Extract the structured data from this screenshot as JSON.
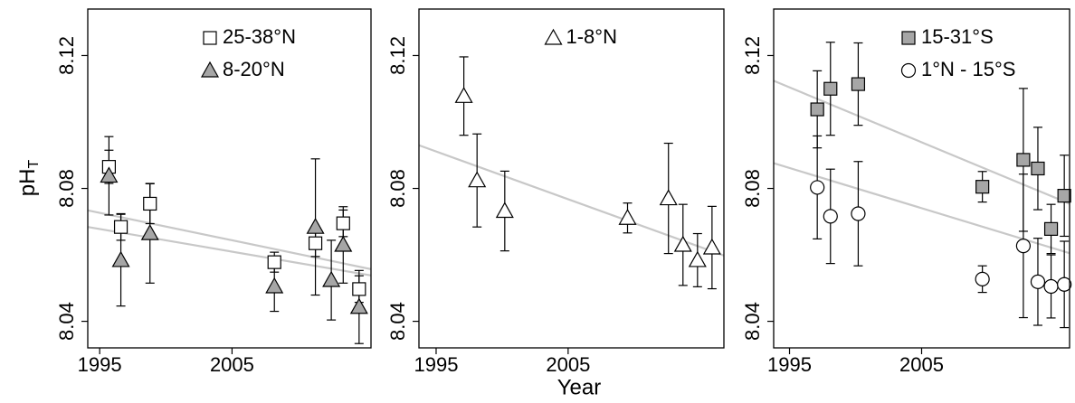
{
  "chart_data": [
    {
      "type": "scatter",
      "ylabel": "pH",
      "ylabel_subscript": "T",
      "xlim": [
        1994.1,
        2015.5
      ],
      "ylim": [
        8.032,
        8.134
      ],
      "xticks": [
        1995,
        2005
      ],
      "yticks": [
        8.04,
        8.08,
        8.12
      ],
      "legend": "top right",
      "series": [
        {
          "name": "25-38°N",
          "marker": "square",
          "color": "#ffffff",
          "x": [
            1995.7,
            1996.6,
            1998.8,
            2008.2,
            2011.3,
            2013.4,
            2014.6
          ],
          "values": [
            8.0865,
            8.0684,
            8.0754,
            8.0578,
            8.0635,
            8.0695,
            8.0497
          ],
          "errors": [
            0.005,
            0.004,
            0.006,
            0.003,
            0.004,
            0.004,
            0.004
          ]
        },
        {
          "name": "8-20°N",
          "marker": "triangle",
          "color": "#a6a6a6",
          "x": [
            1995.7,
            1996.6,
            1998.8,
            2008.2,
            2011.3,
            2012.5,
            2013.4,
            2014.6
          ],
          "values": [
            8.0838,
            8.0584,
            8.0665,
            8.0505,
            8.0684,
            8.0524,
            8.063,
            8.0443
          ],
          "errors": [
            0.0118,
            0.0138,
            0.015,
            0.0075,
            0.0205,
            0.012,
            0.0115,
            0.011
          ]
        }
      ],
      "trendlines": [
        {
          "color": "#c8c8c8",
          "x": [
            1994.1,
            2015.5
          ],
          "values": [
            8.0734,
            8.0557
          ]
        },
        {
          "color": "#c8c8c8",
          "x": [
            1994.1,
            2015.5
          ],
          "values": [
            8.0684,
            8.0538
          ]
        }
      ]
    },
    {
      "type": "scatter",
      "xlabel": "Year",
      "xlim": [
        1993.7,
        2016.8
      ],
      "ylim": [
        8.032,
        8.134
      ],
      "xticks": [
        1995,
        2005
      ],
      "yticks": [
        8.04,
        8.08,
        8.12
      ],
      "legend": "top",
      "series": [
        {
          "name": "1-8°N",
          "marker": "triangle",
          "color": "#ffffff",
          "x": [
            1997.1,
            1998.1,
            2000.2,
            2009.5,
            2012.6,
            2013.7,
            2014.8,
            2015.9
          ],
          "values": [
            8.1078,
            8.0824,
            8.0732,
            8.0711,
            8.077,
            8.063,
            8.0584,
            8.0622
          ],
          "errors": [
            0.0118,
            0.014,
            0.012,
            0.0045,
            0.0166,
            0.0122,
            0.008,
            0.0124
          ]
        }
      ],
      "trendlines": [
        {
          "color": "#c8c8c8",
          "x": [
            1993.7,
            2016.8
          ],
          "values": [
            8.093,
            8.0598
          ]
        }
      ]
    },
    {
      "type": "scatter",
      "xlim": [
        1993.8,
        2016.2
      ],
      "ylim": [
        8.032,
        8.134
      ],
      "xticks": [
        1995,
        2005
      ],
      "yticks": [
        8.04,
        8.08,
        8.12
      ],
      "legend": "top right",
      "series": [
        {
          "name": "15-31°S",
          "marker": "square",
          "color": "#a6a6a6",
          "x": [
            1997.1,
            1998.1,
            2000.2,
            2009.6,
            2012.7,
            2013.8,
            2014.8,
            2015.8
          ],
          "values": [
            8.1038,
            8.11,
            8.1114,
            8.0805,
            8.0886,
            8.086,
            8.0678,
            8.0778
          ],
          "errors": [
            0.0116,
            0.014,
            0.0124,
            0.0046,
            0.0215,
            0.0124,
            0.0074,
            0.0122
          ]
        },
        {
          "name": "1°N - 15°S",
          "marker": "circle",
          "color": "#ffffff",
          "x": [
            1997.1,
            1998.1,
            2000.2,
            2009.6,
            2012.7,
            2013.8,
            2014.8,
            2015.8
          ],
          "values": [
            8.0803,
            8.0716,
            8.0724,
            8.0527,
            8.0627,
            8.0519,
            8.0505,
            8.0511
          ],
          "errors": [
            0.0155,
            0.0142,
            0.0157,
            0.004,
            0.0216,
            0.0131,
            0.0095,
            0.013
          ]
        }
      ],
      "trendlines": [
        {
          "color": "#c8c8c8",
          "x": [
            1993.8,
            2016.2
          ],
          "values": [
            8.1124,
            8.0754
          ]
        },
        {
          "color": "#c8c8c8",
          "x": [
            1993.8,
            2016.2
          ],
          "values": [
            8.0876,
            8.0605
          ]
        }
      ]
    }
  ]
}
